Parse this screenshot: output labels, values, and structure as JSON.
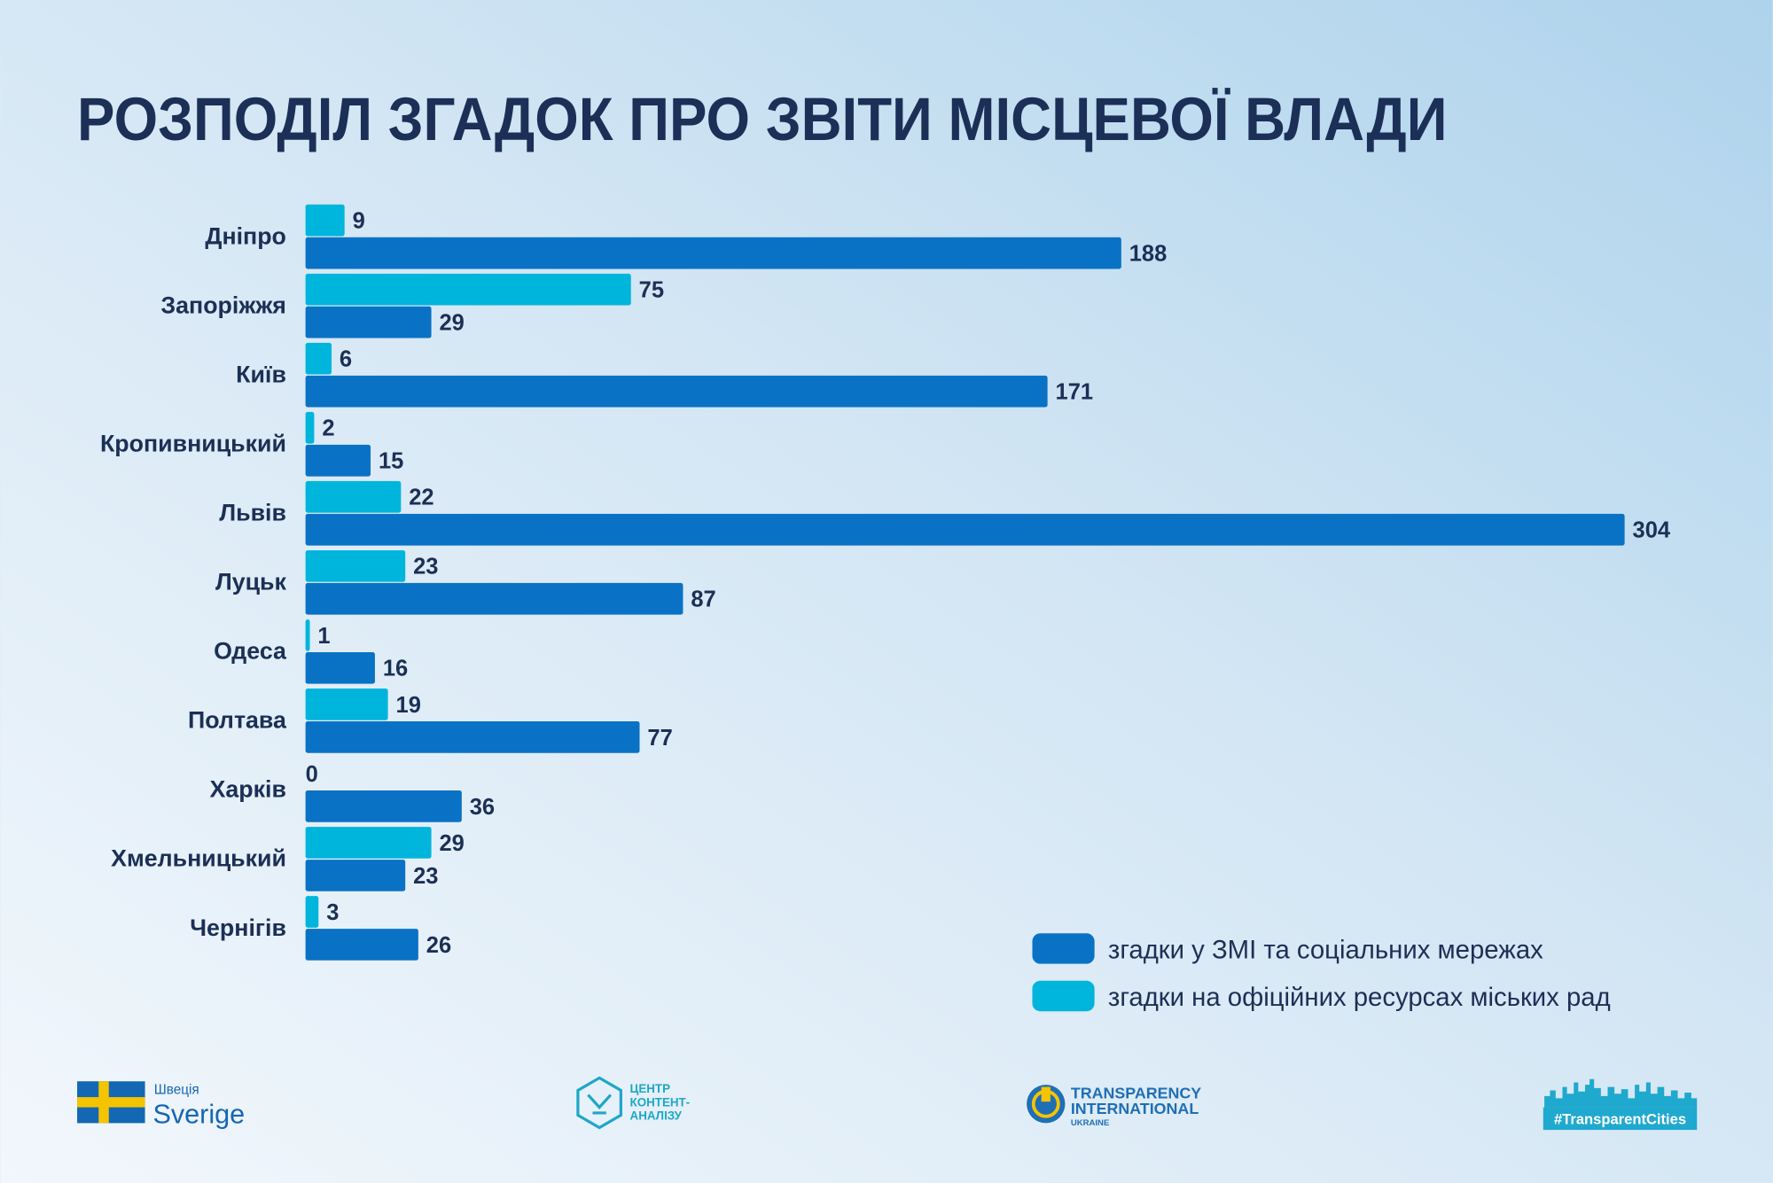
{
  "title": "РОЗПОДІЛ ЗГАДОК ПРО ЗВІТИ МІСЦЕВОЇ ВЛАДИ",
  "colors": {
    "media": "#0a72c5",
    "official": "#00b5dc",
    "text": "#1c2f55"
  },
  "chart_data": {
    "type": "bar",
    "orientation": "horizontal",
    "title": "РОЗПОДІЛ ЗГАДОК ПРО ЗВІТИ МІСЦЕВОЇ ВЛАДИ",
    "categories": [
      "Дніпро",
      "Запоріжжя",
      "Київ",
      "Кропивницький",
      "Львів",
      "Луцьк",
      "Одеса",
      "Полтава",
      "Харків",
      "Хмельницький",
      "Чернігів"
    ],
    "series": [
      {
        "name": "згадки на офіційних ресурсах міських рад",
        "color": "#00b5dc",
        "values": [
          9,
          75,
          6,
          2,
          22,
          23,
          1,
          19,
          0,
          29,
          3
        ]
      },
      {
        "name": "згадки у ЗМІ та соціальних мережах",
        "color": "#0a72c5",
        "values": [
          188,
          29,
          171,
          15,
          304,
          87,
          16,
          77,
          36,
          23,
          26
        ]
      }
    ],
    "xlim": [
      0,
      304
    ],
    "grid": false,
    "data_labels": true,
    "legend_position": "bottom-right"
  },
  "legend": {
    "media": "згадки у ЗМІ та соціальних мережах",
    "official": "згадки на офіційних ресурсах міських рад"
  },
  "footer": {
    "sweden_small": "Швеція",
    "sweden_big": "Sverige",
    "ccа_line1": "ЦЕНТР",
    "ccа_line2": "КОНТЕНТ-",
    "ccа_line3": "АНАЛІЗУ",
    "ti_line1": "TRANSPARENCY",
    "ti_line2": "INTERNATIONAL",
    "ti_line3": "UKRAINE",
    "hashtag": "#TransparentCities"
  }
}
